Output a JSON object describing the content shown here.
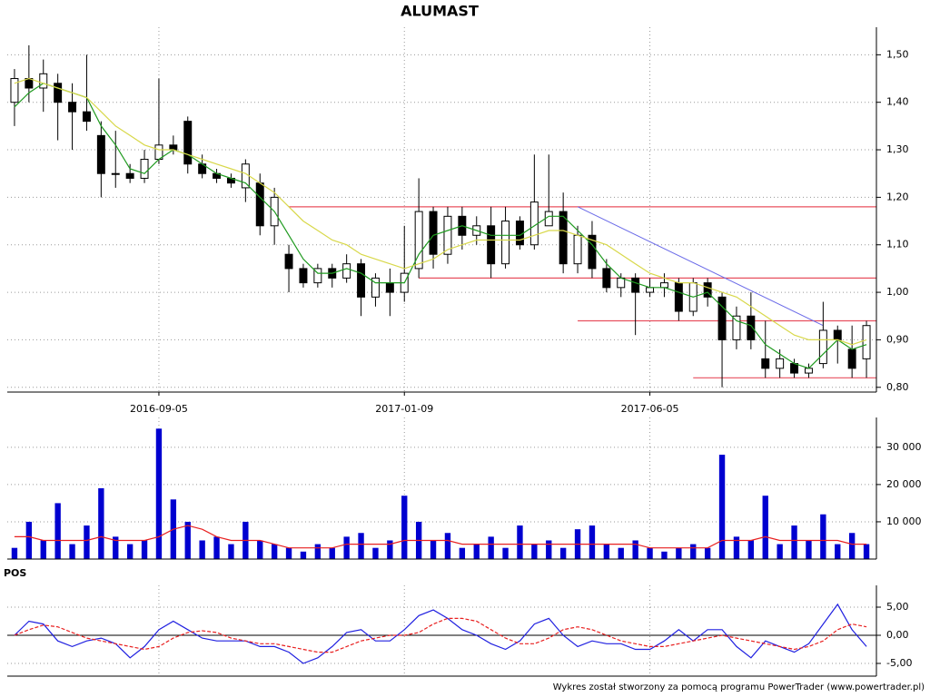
{
  "chart_data": [
    {
      "type": "candlestick",
      "title": "ALUMAST",
      "categories": [
        null,
        null,
        null,
        null,
        null,
        null,
        null,
        null,
        null,
        null,
        "2016-09-05",
        null,
        null,
        null,
        null,
        null,
        null,
        null,
        null,
        null,
        null,
        null,
        null,
        null,
        null,
        null,
        null,
        "2017-01-09",
        null,
        null,
        null,
        null,
        null,
        null,
        null,
        null,
        null,
        null,
        null,
        null,
        null,
        null,
        null,
        null,
        "2017-06-05",
        null,
        null,
        null,
        null,
        null,
        null,
        null,
        null,
        null,
        null,
        null,
        null,
        null,
        null,
        null
      ],
      "open": [
        1.4,
        1.45,
        1.43,
        1.44,
        1.4,
        1.38,
        1.33,
        1.25,
        1.25,
        1.24,
        1.28,
        1.31,
        1.36,
        1.27,
        1.25,
        1.24,
        1.22,
        1.23,
        1.14,
        1.08,
        1.05,
        1.02,
        1.05,
        1.03,
        1.06,
        0.99,
        1.02,
        1.0,
        1.05,
        1.17,
        1.08,
        1.16,
        1.12,
        1.14,
        1.06,
        1.15,
        1.1,
        1.14,
        1.17,
        1.06,
        1.12,
        1.05,
        1.01,
        1.03,
        1.0,
        1.01,
        1.02,
        0.96,
        1.02,
        0.99,
        0.9,
        0.95,
        0.86,
        0.84,
        0.85,
        0.83,
        0.85,
        0.92,
        0.88,
        0.86
      ],
      "high": [
        1.47,
        1.52,
        1.49,
        1.46,
        1.44,
        1.5,
        1.36,
        1.34,
        1.27,
        1.3,
        1.45,
        1.33,
        1.37,
        1.29,
        1.26,
        1.25,
        1.28,
        1.25,
        1.22,
        1.1,
        1.06,
        1.06,
        1.06,
        1.08,
        1.07,
        1.04,
        1.05,
        1.14,
        1.24,
        1.18,
        1.18,
        1.18,
        1.16,
        1.18,
        1.18,
        1.16,
        1.29,
        1.29,
        1.21,
        1.14,
        1.15,
        1.07,
        1.04,
        1.04,
        1.03,
        1.04,
        1.03,
        1.03,
        1.03,
        1.0,
        0.97,
        1.0,
        0.94,
        0.88,
        0.86,
        0.85,
        0.98,
        0.93,
        0.93,
        0.94
      ],
      "low": [
        1.35,
        1.4,
        1.38,
        1.32,
        1.3,
        1.34,
        1.2,
        1.22,
        1.23,
        1.23,
        1.27,
        1.29,
        1.25,
        1.24,
        1.23,
        1.22,
        1.19,
        1.12,
        1.1,
        1.0,
        1.01,
        1.01,
        1.01,
        1.02,
        0.95,
        0.97,
        0.95,
        0.98,
        1.03,
        1.05,
        1.06,
        1.09,
        1.1,
        1.03,
        1.05,
        1.09,
        1.09,
        1.14,
        1.04,
        1.04,
        1.03,
        1.0,
        0.99,
        0.91,
        0.99,
        0.99,
        0.94,
        0.95,
        0.97,
        0.8,
        0.88,
        0.88,
        0.82,
        0.82,
        0.82,
        0.82,
        0.84,
        0.85,
        0.82,
        0.82
      ],
      "close": [
        1.45,
        1.43,
        1.46,
        1.4,
        1.38,
        1.36,
        1.25,
        1.25,
        1.24,
        1.28,
        1.31,
        1.3,
        1.27,
        1.25,
        1.24,
        1.23,
        1.27,
        1.14,
        1.2,
        1.05,
        1.02,
        1.05,
        1.03,
        1.06,
        0.99,
        1.03,
        1.0,
        1.04,
        1.17,
        1.08,
        1.16,
        1.12,
        1.14,
        1.06,
        1.15,
        1.1,
        1.19,
        1.17,
        1.06,
        1.12,
        1.05,
        1.01,
        1.03,
        1.0,
        1.01,
        1.02,
        0.96,
        1.02,
        0.99,
        0.9,
        0.95,
        0.9,
        0.84,
        0.86,
        0.83,
        0.84,
        0.92,
        0.9,
        0.84,
        0.93
      ],
      "lines": [
        {
          "color": "#1f9a1f",
          "values": [
            1.39,
            1.42,
            1.44,
            1.43,
            1.42,
            1.41,
            1.35,
            1.31,
            1.26,
            1.25,
            1.28,
            1.3,
            1.29,
            1.27,
            1.25,
            1.24,
            1.23,
            1.2,
            1.17,
            1.12,
            1.07,
            1.04,
            1.04,
            1.05,
            1.04,
            1.02,
            1.02,
            1.02,
            1.08,
            1.12,
            1.13,
            1.14,
            1.13,
            1.12,
            1.12,
            1.12,
            1.14,
            1.16,
            1.16,
            1.13,
            1.1,
            1.06,
            1.03,
            1.02,
            1.01,
            1.01,
            1.0,
            0.99,
            1.0,
            0.97,
            0.94,
            0.93,
            0.89,
            0.87,
            0.85,
            0.84,
            0.87,
            0.9,
            0.88,
            0.89
          ]
        },
        {
          "color": "#d8d84a",
          "values": [
            1.44,
            1.45,
            1.44,
            1.43,
            1.42,
            1.41,
            1.38,
            1.35,
            1.33,
            1.31,
            1.3,
            1.3,
            1.29,
            1.28,
            1.27,
            1.26,
            1.25,
            1.23,
            1.21,
            1.18,
            1.15,
            1.13,
            1.11,
            1.1,
            1.08,
            1.07,
            1.06,
            1.05,
            1.06,
            1.07,
            1.09,
            1.1,
            1.11,
            1.11,
            1.11,
            1.11,
            1.12,
            1.13,
            1.13,
            1.12,
            1.11,
            1.1,
            1.08,
            1.06,
            1.04,
            1.03,
            1.02,
            1.02,
            1.01,
            1.0,
            0.99,
            0.97,
            0.95,
            0.93,
            0.91,
            0.9,
            0.9,
            0.9,
            0.89,
            0.9
          ]
        }
      ],
      "levels": [
        {
          "value": 1.18,
          "start": 19
        },
        {
          "value": 1.03,
          "start": 28
        },
        {
          "value": 0.94,
          "start": 39
        },
        {
          "value": 0.82,
          "start": 47
        }
      ],
      "level_color": "#e8505f",
      "trendline": {
        "color": "#6a6ae8",
        "x": [
          39,
          56
        ],
        "y": [
          1.18,
          0.93
        ]
      },
      "ylim": [
        0.79,
        1.558
      ],
      "yticks": [
        {
          "value": 0.8,
          "label": "0,80"
        },
        {
          "value": 0.9,
          "label": "0,90"
        },
        {
          "value": 1.0,
          "label": "1,00"
        },
        {
          "value": 1.1,
          "label": "1,10"
        },
        {
          "value": 1.2,
          "label": "1,20"
        },
        {
          "value": 1.3,
          "label": "1,30"
        },
        {
          "value": 1.4,
          "label": "1,40"
        },
        {
          "value": 1.5,
          "label": "1,50"
        }
      ],
      "grid": true
    },
    {
      "type": "bar",
      "color": "#0000d0",
      "values": [
        3000,
        10000,
        5000,
        15000,
        4000,
        9000,
        19000,
        6000,
        4000,
        5000,
        35000,
        16000,
        10000,
        5000,
        6000,
        4000,
        10000,
        5000,
        4000,
        3000,
        2000,
        4000,
        3000,
        6000,
        7000,
        3000,
        5000,
        17000,
        10000,
        5000,
        7000,
        3000,
        4000,
        6000,
        3000,
        9000,
        4000,
        5000,
        3000,
        8000,
        9000,
        4000,
        3000,
        5000,
        3000,
        2000,
        3000,
        4000,
        3000,
        28000,
        6000,
        5000,
        17000,
        4000,
        9000,
        5000,
        12000,
        4000,
        7000,
        4000
      ],
      "lines": [
        {
          "color": "#e82020",
          "values": [
            6000,
            6000,
            5000,
            5000,
            5000,
            5000,
            6000,
            5000,
            5000,
            5000,
            6000,
            8000,
            9000,
            8000,
            6000,
            5000,
            5000,
            5000,
            4000,
            3000,
            3000,
            3000,
            3000,
            4000,
            4000,
            4000,
            4000,
            5000,
            5000,
            5000,
            5000,
            4000,
            4000,
            4000,
            4000,
            4000,
            4000,
            4000,
            4000,
            4000,
            4000,
            4000,
            4000,
            4000,
            3000,
            3000,
            3000,
            3000,
            3000,
            5000,
            5000,
            5000,
            6000,
            5000,
            5000,
            5000,
            5000,
            5000,
            4000,
            4000
          ]
        }
      ],
      "ylim": [
        0,
        38000
      ],
      "yticks": [
        {
          "value": 10000,
          "label": "10 000"
        },
        {
          "value": 20000,
          "label": "20 000"
        },
        {
          "value": 30000,
          "label": "30 000"
        }
      ],
      "grid": true
    },
    {
      "type": "line",
      "title": "POS",
      "series": [
        {
          "color": "#2020e0",
          "values": [
            0,
            2.5,
            2,
            -1,
            -2,
            -1,
            -0.5,
            -1.5,
            -4,
            -2,
            1,
            2.5,
            1,
            -0.5,
            -1,
            -1,
            -1,
            -2,
            -2,
            -3,
            -5,
            -4,
            -2,
            0.5,
            1,
            -1,
            -1,
            1,
            3.5,
            4.5,
            3,
            1,
            0,
            -1.5,
            -2.5,
            -1,
            2,
            3,
            0,
            -2,
            -1,
            -1.5,
            -1.5,
            -2.5,
            -2.5,
            -1,
            1,
            -1,
            1,
            1,
            -2,
            -4,
            -1,
            -2,
            -3,
            -1.5,
            2,
            5.5,
            1,
            -2
          ]
        },
        {
          "color": "#e82020",
          "dash": true,
          "values": [
            0,
            1,
            1.8,
            1.5,
            0.5,
            -0.5,
            -1,
            -1.5,
            -2,
            -2.5,
            -2,
            -0.5,
            0.5,
            0.8,
            0.5,
            -0.5,
            -1,
            -1.5,
            -1.5,
            -2,
            -2.5,
            -3,
            -3,
            -2,
            -1,
            -0.5,
            0,
            0,
            0.5,
            2,
            3,
            3,
            2.5,
            1,
            -0.5,
            -1.5,
            -1.5,
            -0.5,
            1,
            1.5,
            1,
            0,
            -1,
            -1.5,
            -2,
            -2,
            -1.5,
            -1,
            -0.5,
            0,
            -0.5,
            -1,
            -1.5,
            -2,
            -2.5,
            -2,
            -1,
            1,
            2,
            1.5
          ]
        }
      ],
      "ylim": [
        -7.26,
        8.87
      ],
      "yticks": [
        {
          "value": -5,
          "label": "-5,00"
        },
        {
          "value": 0,
          "label": "0,00"
        },
        {
          "value": 5,
          "label": "5,00"
        }
      ],
      "zero_line": true,
      "grid": true
    }
  ],
  "footer": "Wykres został stworzony za pomocą programu PowerTrader (www.powertrader.pl)"
}
